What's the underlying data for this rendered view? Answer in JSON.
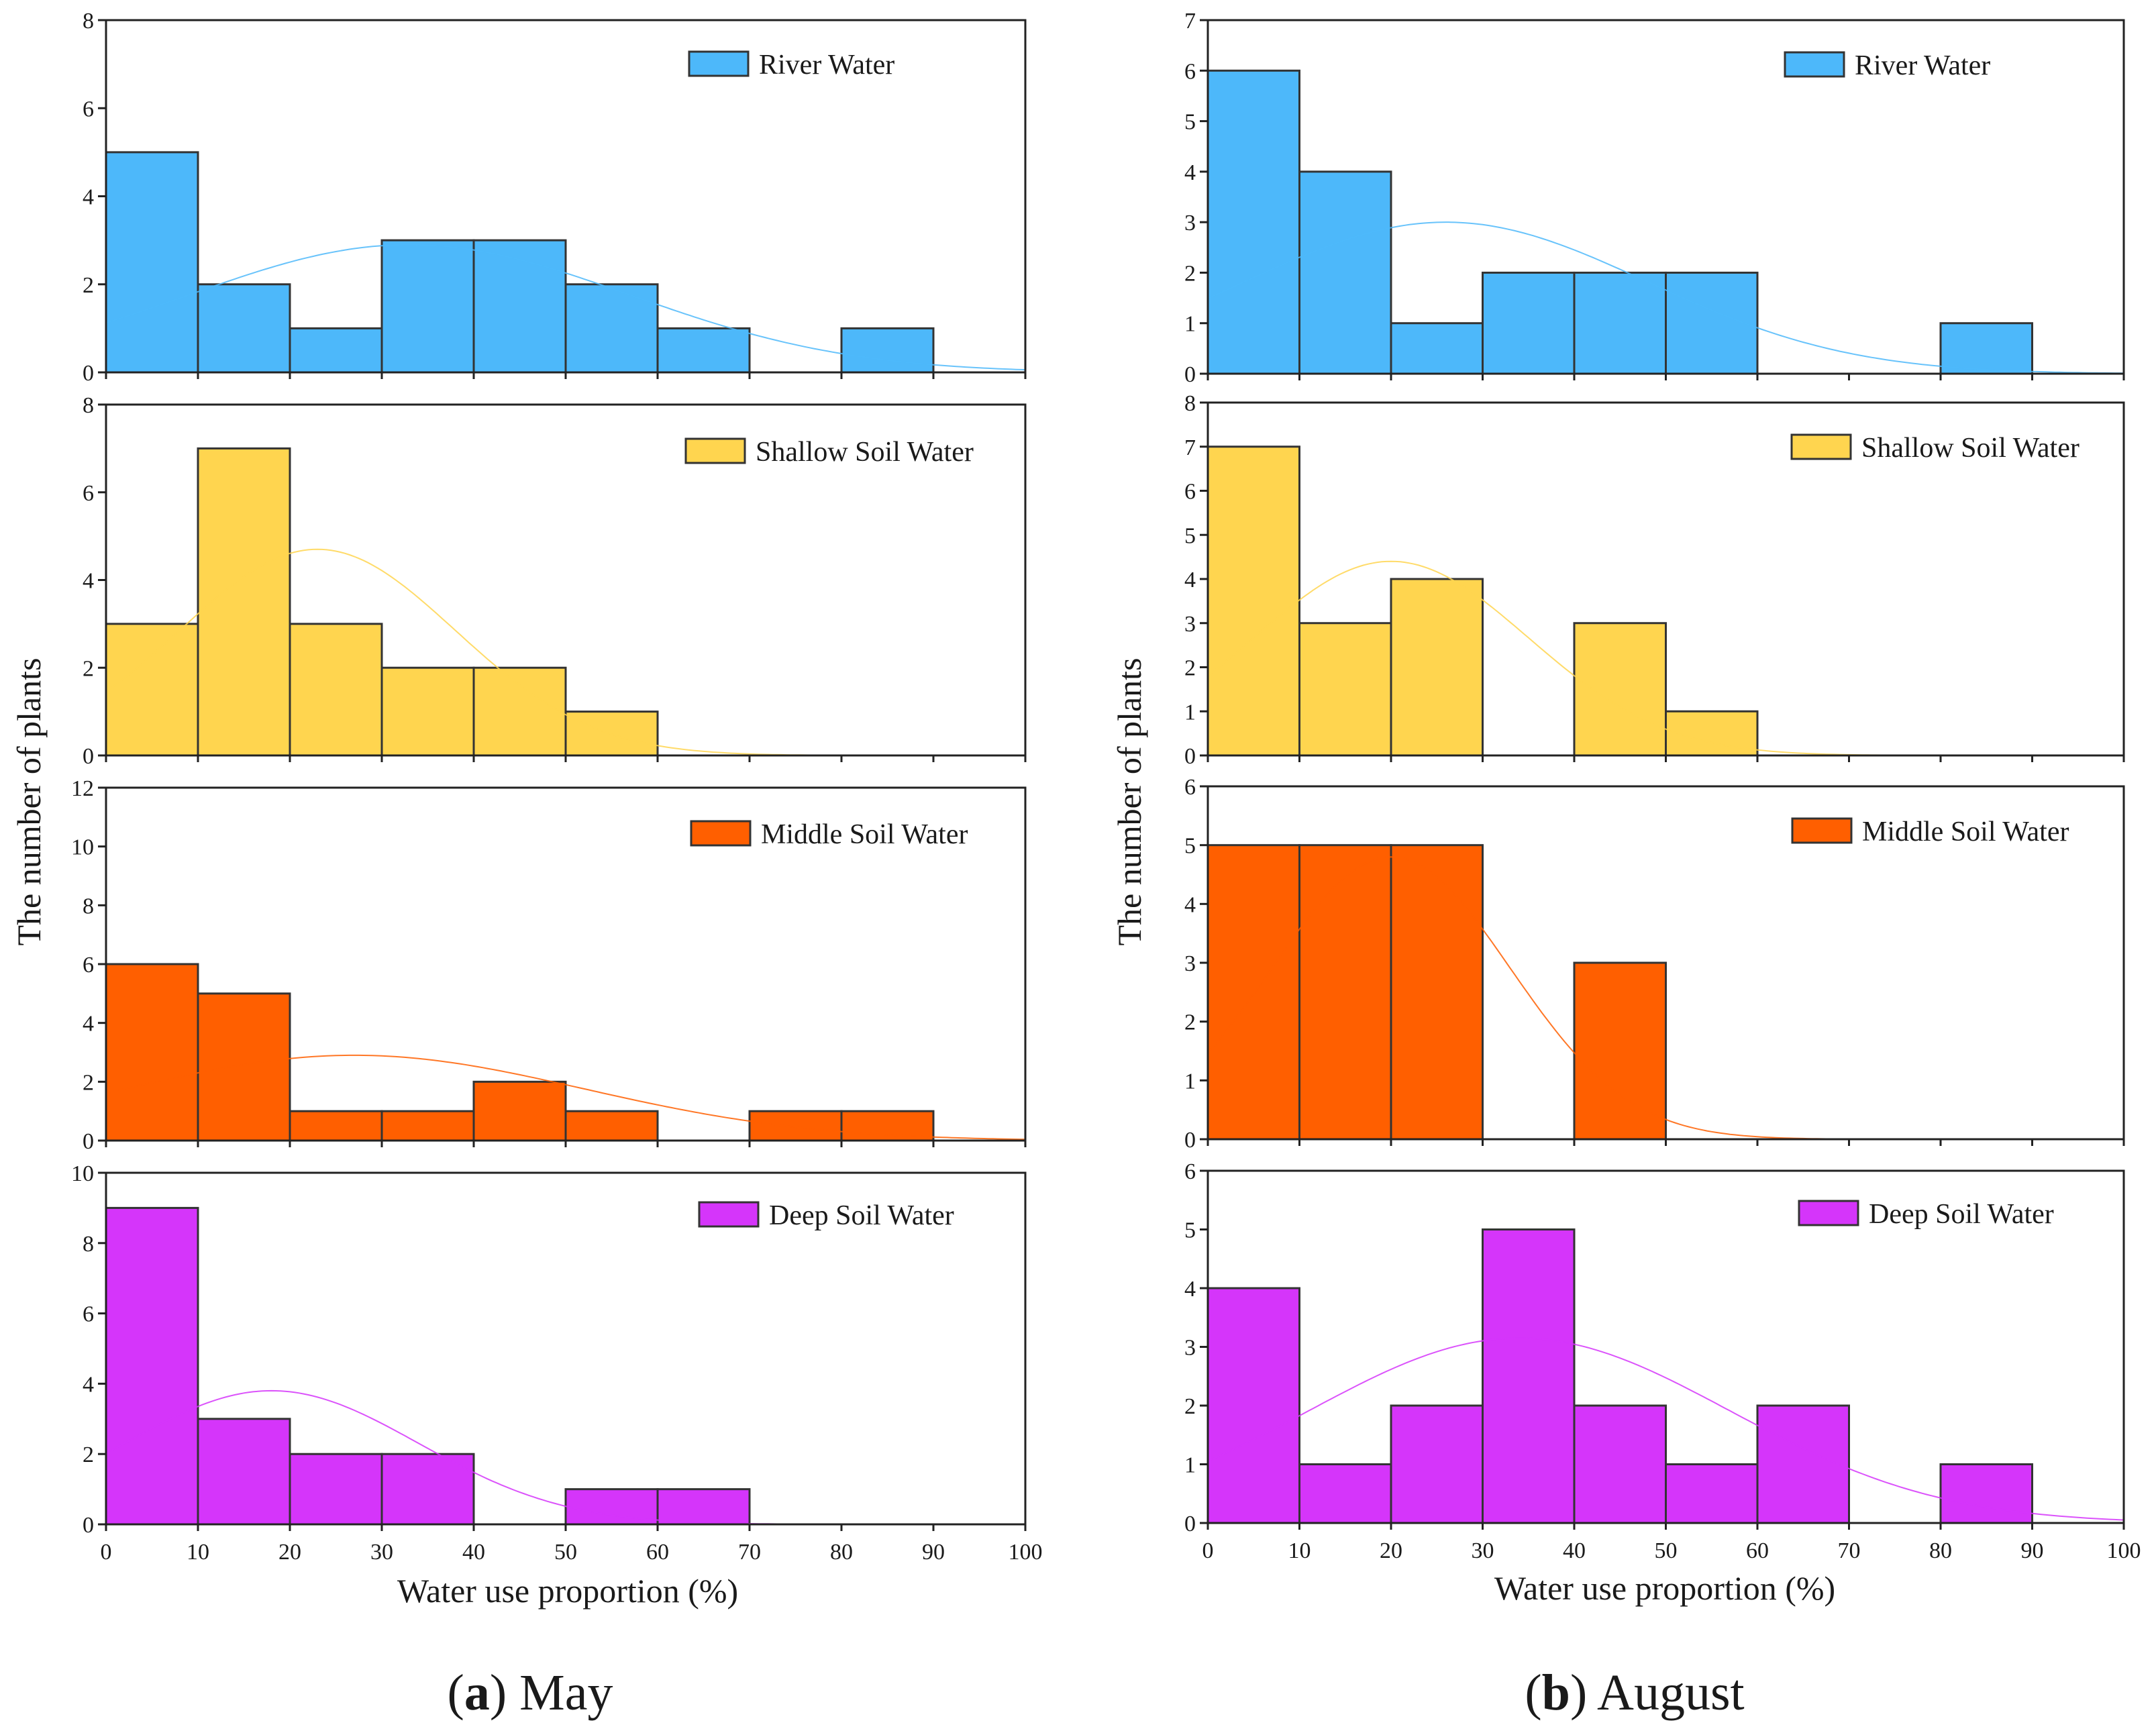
{
  "chart_data": [
    {
      "id": "may-river",
      "type": "bar",
      "legend": "River Water",
      "color": "#4db8fa",
      "bin_edges": [
        0,
        10,
        20,
        30,
        40,
        50,
        60,
        70,
        80,
        90,
        100
      ],
      "values": [
        5,
        2,
        1,
        3,
        3,
        2,
        1,
        0,
        1,
        0
      ],
      "ylim": [
        0,
        8
      ],
      "yticks": [
        0,
        2,
        4,
        6,
        8
      ],
      "fit": {
        "mean": 33,
        "sd": 24,
        "peak": 2.9
      }
    },
    {
      "id": "may-shallow",
      "type": "bar",
      "legend": "Shallow Soil Water",
      "color": "#ffd54f",
      "bin_edges": [
        0,
        10,
        20,
        30,
        40,
        50,
        60,
        70,
        80,
        90,
        100
      ],
      "values": [
        3,
        7,
        3,
        2,
        2,
        1,
        0,
        0,
        0,
        0
      ],
      "ylim": [
        0,
        8
      ],
      "yticks": [
        0,
        2,
        4,
        6,
        8
      ],
      "fit": {
        "mean": 23,
        "sd": 15,
        "peak": 4.7
      }
    },
    {
      "id": "may-middle",
      "type": "bar",
      "legend": "Middle Soil Water",
      "color": "#ff5f00",
      "bin_edges": [
        0,
        10,
        20,
        30,
        40,
        50,
        60,
        70,
        80,
        90,
        100
      ],
      "values": [
        6,
        5,
        1,
        1,
        2,
        1,
        0,
        1,
        1,
        0
      ],
      "ylim": [
        0,
        12
      ],
      "yticks": [
        0,
        2,
        4,
        6,
        8,
        10,
        12
      ],
      "fit": {
        "mean": 27,
        "sd": 25,
        "peak": 2.9
      }
    },
    {
      "id": "may-deep",
      "type": "bar",
      "legend": "Deep Soil Water",
      "color": "#d535fa",
      "bin_edges": [
        0,
        10,
        20,
        30,
        40,
        50,
        60,
        70,
        80,
        90,
        100
      ],
      "values": [
        9,
        3,
        2,
        2,
        0,
        1,
        1,
        0,
        0,
        0
      ],
      "ylim": [
        0,
        10
      ],
      "yticks": [
        0,
        2,
        4,
        6,
        8,
        10
      ],
      "fit": {
        "mean": 18,
        "sd": 16,
        "peak": 3.8
      }
    },
    {
      "id": "aug-river",
      "type": "bar",
      "legend": "River Water",
      "color": "#4db8fa",
      "bin_edges": [
        0,
        10,
        20,
        30,
        40,
        50,
        60,
        70,
        80,
        90,
        100
      ],
      "values": [
        6,
        4,
        1,
        2,
        2,
        2,
        0,
        0,
        1,
        0
      ],
      "ylim": [
        0,
        7
      ],
      "yticks": [
        0,
        1,
        2,
        3,
        4,
        5,
        6,
        7
      ],
      "fit": {
        "mean": 26,
        "sd": 22,
        "peak": 3.0
      }
    },
    {
      "id": "aug-shallow",
      "type": "bar",
      "legend": "Shallow Soil Water",
      "color": "#ffd54f",
      "bin_edges": [
        0,
        10,
        20,
        30,
        40,
        50,
        60,
        70,
        80,
        90,
        100
      ],
      "values": [
        7,
        3,
        4,
        0,
        3,
        1,
        0,
        0,
        0,
        0
      ],
      "ylim": [
        0,
        8
      ],
      "yticks": [
        0,
        1,
        2,
        3,
        4,
        5,
        6,
        7,
        8
      ],
      "fit": {
        "mean": 20,
        "sd": 15,
        "peak": 4.4
      }
    },
    {
      "id": "aug-middle",
      "type": "bar",
      "legend": "Middle Soil Water",
      "color": "#ff5f00",
      "bin_edges": [
        0,
        10,
        20,
        30,
        40,
        50,
        60,
        70,
        80,
        90,
        100
      ],
      "values": [
        5,
        5,
        5,
        0,
        3,
        0,
        0,
        0,
        0,
        0
      ],
      "ylim": [
        0,
        6
      ],
      "yticks": [
        0,
        1,
        2,
        3,
        4,
        5,
        6
      ],
      "fit": {
        "mean": 20,
        "sd": 13,
        "peak": 4.8
      }
    },
    {
      "id": "aug-deep",
      "type": "bar",
      "legend": "Deep Soil Water",
      "color": "#d535fa",
      "bin_edges": [
        0,
        10,
        20,
        30,
        40,
        50,
        60,
        70,
        80,
        90,
        100
      ],
      "values": [
        4,
        1,
        2,
        5,
        2,
        1,
        2,
        0,
        1,
        0
      ],
      "ylim": [
        0,
        6
      ],
      "yticks": [
        0,
        1,
        2,
        3,
        4,
        5,
        6
      ],
      "fit": {
        "mean": 34,
        "sd": 23,
        "peak": 3.15
      }
    }
  ],
  "axes": {
    "xlabel": "Water use proportion (%)",
    "ylabel": "The number of plants",
    "xticks": [
      0,
      10,
      20,
      30,
      40,
      50,
      60,
      70,
      80,
      90,
      100
    ],
    "xlim": [
      0,
      100
    ]
  },
  "captions": {
    "may": {
      "letter": "a",
      "text": " May"
    },
    "august": {
      "letter": "b",
      "text": " August"
    }
  }
}
